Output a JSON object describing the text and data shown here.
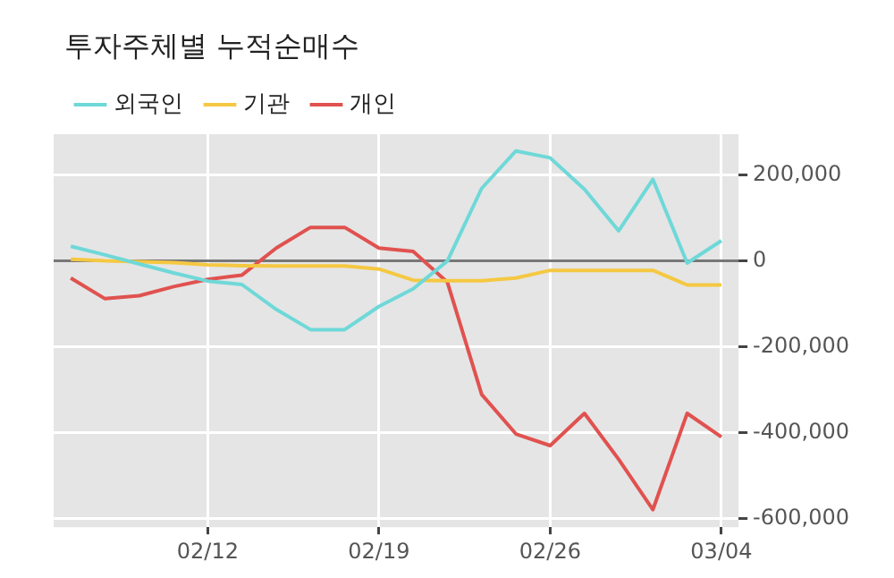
{
  "chart_data": {
    "type": "line",
    "title": "투자주체별 누적순매수",
    "categories": [
      null,
      null,
      null,
      null,
      "02/12",
      null,
      null,
      null,
      null,
      "02/19",
      null,
      null,
      null,
      null,
      "02/26",
      null,
      null,
      null,
      null,
      "03/04"
    ],
    "series": [
      {
        "name": "외국인",
        "color": "#6fd8d8",
        "values": [
          34000,
          14000,
          -7000,
          -28000,
          -47000,
          -55000,
          -113000,
          -160000,
          -160000,
          -106000,
          -65000,
          0,
          169000,
          256000,
          240000,
          167000,
          70000,
          190000,
          -5000,
          47000
        ]
      },
      {
        "name": "기관",
        "color": "#f5c842",
        "values": [
          4000,
          0,
          -2000,
          -4000,
          -9000,
          -11000,
          -12000,
          -12000,
          -12000,
          -19000,
          -45000,
          -46000,
          -46000,
          -40000,
          -22000,
          -22000,
          -22000,
          -22000,
          -56000,
          -56000
        ]
      },
      {
        "name": "개인",
        "color": "#e0524f",
        "values": [
          -40000,
          -88000,
          -81000,
          -60000,
          -43000,
          -33000,
          30000,
          78000,
          78000,
          30000,
          22000,
          -50000,
          -311000,
          -403000,
          -430000,
          -355000,
          -462000,
          -579000,
          -355000,
          -410000
        ]
      }
    ],
    "ylim": [
      -620000,
      295000
    ],
    "yticks": [
      {
        "value": -600000,
        "label": "-600,000"
      },
      {
        "value": -400000,
        "label": "-400,000"
      },
      {
        "value": -200000,
        "label": "-200,000"
      },
      0,
      {
        "value": 200000,
        "label": "200,000"
      }
    ],
    "ref_lines": [
      {
        "axis": "y",
        "value": 0,
        "color": "#777777"
      }
    ],
    "grid": true,
    "legend": "top left",
    "marker": "none",
    "line_style": "solid"
  }
}
